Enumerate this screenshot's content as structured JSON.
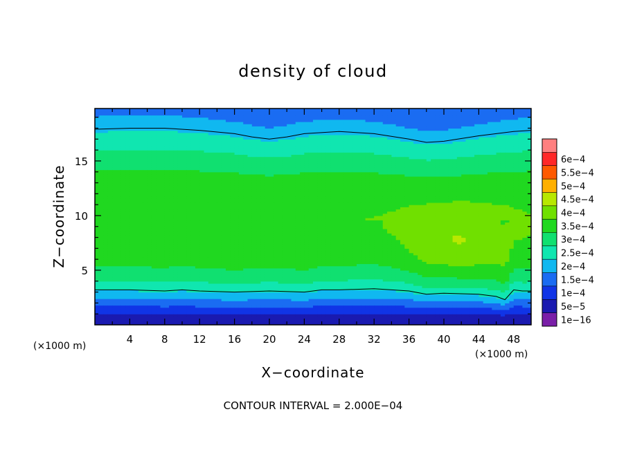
{
  "chart_data": {
    "type": "heatmap",
    "title": "density of cloud",
    "xlabel": "X−coordinate",
    "ylabel": "Z−coordinate",
    "x_unit": "(×1000 m)",
    "z_unit": "(×1000 m)",
    "xlim": [
      0,
      50
    ],
    "ylim": [
      0,
      19.8
    ],
    "x_ticks": [
      4,
      8,
      12,
      16,
      20,
      24,
      28,
      32,
      36,
      40,
      44,
      48
    ],
    "y_ticks": [
      5,
      10,
      15
    ],
    "contour_interval_text": "CONTOUR INTERVAL = 2.000E−04",
    "colorbar": {
      "levels": [
        1e-16,
        5e-05,
        0.0001,
        0.00015,
        0.0002,
        0.00025,
        0.0003,
        0.00035,
        0.0004,
        0.00045,
        0.0005,
        0.00055,
        0.0006
      ],
      "labels": [
        "1e−16",
        "5e−5",
        "1e−4",
        "1.5e−4",
        "2e−4",
        "2.5e−4",
        "3e−4",
        "3.5e−4",
        "4e−4",
        "4.5e−4",
        "5e−4",
        "5.5e−4",
        "6e−4"
      ],
      "colors": [
        "#7a1fa8",
        "#1a1ab0",
        "#1034e6",
        "#1a6cf2",
        "#10b8f0",
        "#10e6b0",
        "#10e070",
        "#20d820",
        "#70e000",
        "#b8e800",
        "#ffb000",
        "#ff5a00",
        "#ff2828",
        "#ff8080"
      ]
    },
    "profile_z": [
      0.0,
      0.6,
      1.0,
      1.4,
      1.9,
      2.4,
      3.0,
      3.6,
      4.3,
      5.2,
      6.5,
      8.0,
      9.5,
      11.0,
      12.5,
      14.0,
      15.3,
      16.4,
      17.3,
      18.0,
      18.6,
      19.1,
      19.5,
      19.8
    ],
    "profile_density": [
      5e-05,
      2e-05,
      5e-05,
      8e-05,
      0.00012,
      0.00016,
      0.000205,
      0.00024,
      0.000275,
      0.000305,
      0.00033,
      0.000345,
      0.00035,
      0.000345,
      0.00033,
      0.000305,
      0.000275,
      0.00024,
      0.00021,
      0.000195,
      0.000175,
      0.000155,
      0.000135,
      0.000115
    ],
    "bright_region": {
      "x_range": [
        35,
        48
      ],
      "z_range": [
        4,
        11
      ],
      "peak_density": 0.000385
    },
    "contour_2e-4": {
      "upper": {
        "x": [
          0,
          4,
          8,
          12,
          16,
          18,
          20,
          22,
          24,
          28,
          32,
          36,
          38,
          40,
          44,
          48,
          50
        ],
        "z": [
          17.9,
          18.0,
          18.0,
          17.8,
          17.5,
          17.2,
          17.0,
          17.2,
          17.5,
          17.7,
          17.5,
          17.0,
          16.7,
          16.8,
          17.3,
          17.7,
          17.8
        ]
      },
      "lower": {
        "x": [
          0,
          4,
          8,
          10,
          12,
          16,
          20,
          24,
          26,
          28,
          32,
          36,
          38,
          40,
          44,
          46,
          47,
          48,
          49,
          50
        ],
        "z": [
          3.2,
          3.2,
          3.1,
          3.2,
          3.1,
          3.0,
          3.1,
          3.0,
          3.2,
          3.2,
          3.3,
          3.1,
          2.8,
          2.9,
          2.8,
          2.6,
          2.3,
          3.2,
          3.1,
          3.1
        ]
      }
    }
  }
}
